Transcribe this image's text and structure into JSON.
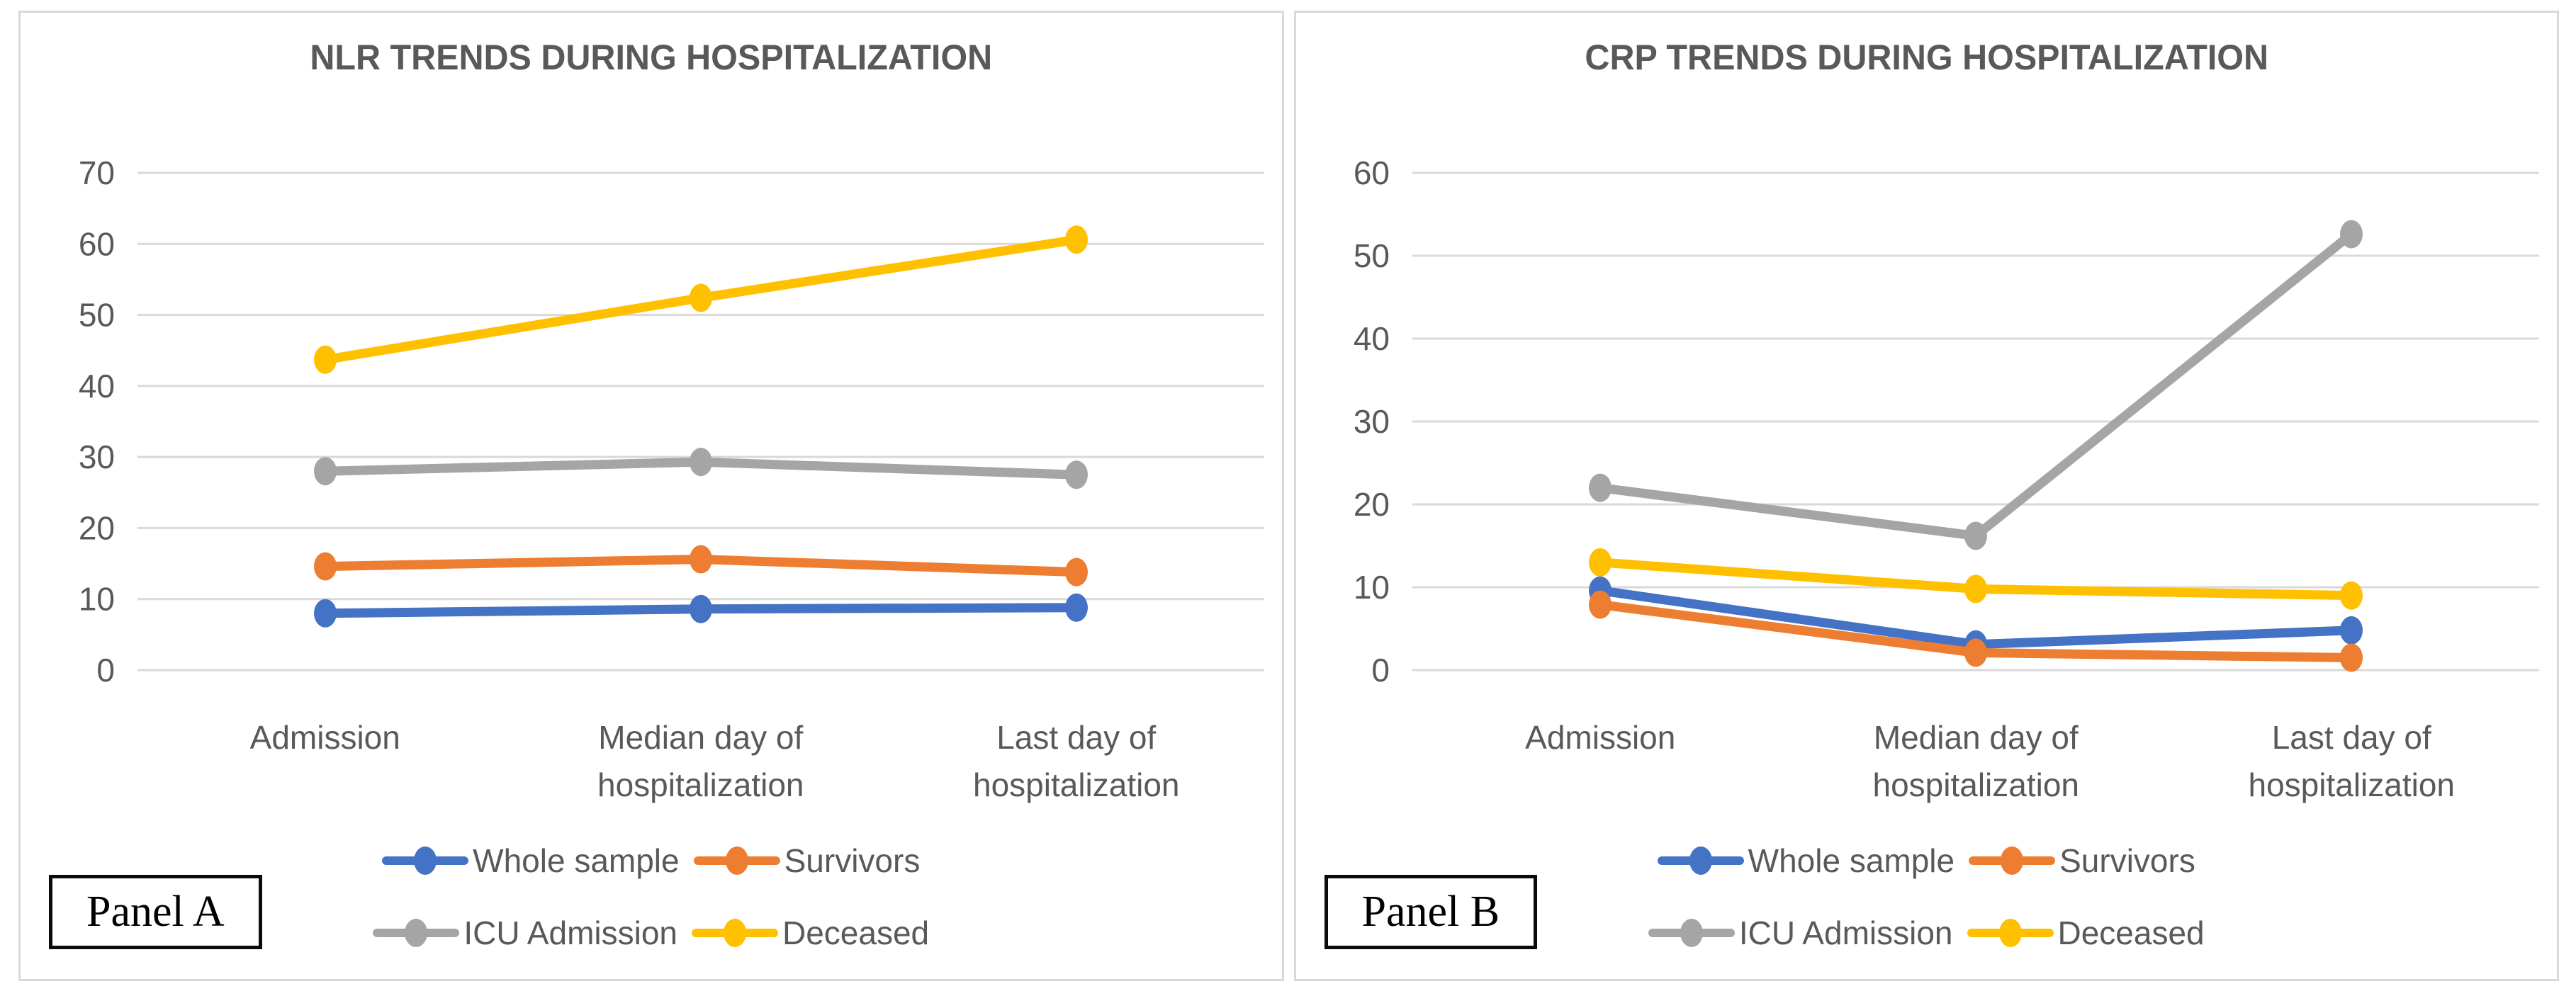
{
  "panels": [
    {
      "label": "Panel A"
    },
    {
      "label": "Panel B"
    }
  ],
  "colors": {
    "grid": "#D9D9D9",
    "axis_text": "#595959",
    "panel_border": "#D9D9D9",
    "blue": "#4472C4",
    "orange": "#ED7D31",
    "gray": "#A5A5A5",
    "yellow": "#FFC000"
  },
  "chart_data": [
    {
      "type": "line",
      "title": "NLR TRENDS DURING HOSPITALIZATION",
      "categories": [
        "Admission",
        "Median day of\nhospitalization",
        "Last day of\nhospitalization"
      ],
      "series": [
        {
          "name": "Whole sample",
          "color": "#4472C4",
          "values": [
            8.0,
            8.6,
            8.8
          ]
        },
        {
          "name": "Survivors",
          "color": "#ED7D31",
          "values": [
            14.6,
            15.6,
            13.8
          ]
        },
        {
          "name": "ICU Admission",
          "color": "#A5A5A5",
          "values": [
            28.0,
            29.3,
            27.5
          ]
        },
        {
          "name": "Deceased",
          "color": "#FFC000",
          "values": [
            43.7,
            52.4,
            60.6
          ]
        }
      ],
      "xlabel": "",
      "ylabel": "",
      "ylim": [
        0,
        70
      ],
      "ytick_step": 10,
      "grid": true,
      "legend_position": "bottom"
    },
    {
      "type": "line",
      "title": "CRP TRENDS DURING HOSPITALIZATION",
      "categories": [
        "Admission",
        "Median day of\nhospitalization",
        "Last day of\nhospitalization"
      ],
      "series": [
        {
          "name": "Whole sample",
          "color": "#4472C4",
          "values": [
            9.6,
            3.1,
            4.8
          ]
        },
        {
          "name": "Survivors",
          "color": "#ED7D31",
          "values": [
            7.9,
            2.1,
            1.5
          ]
        },
        {
          "name": "ICU Admission",
          "color": "#A5A5A5",
          "values": [
            22.0,
            16.2,
            52.6
          ]
        },
        {
          "name": "Deceased",
          "color": "#FFC000",
          "values": [
            13.0,
            9.8,
            9.0
          ]
        }
      ],
      "xlabel": "",
      "ylabel": "",
      "ylim": [
        0,
        60
      ],
      "ytick_step": 10,
      "grid": true,
      "legend_position": "bottom"
    }
  ]
}
